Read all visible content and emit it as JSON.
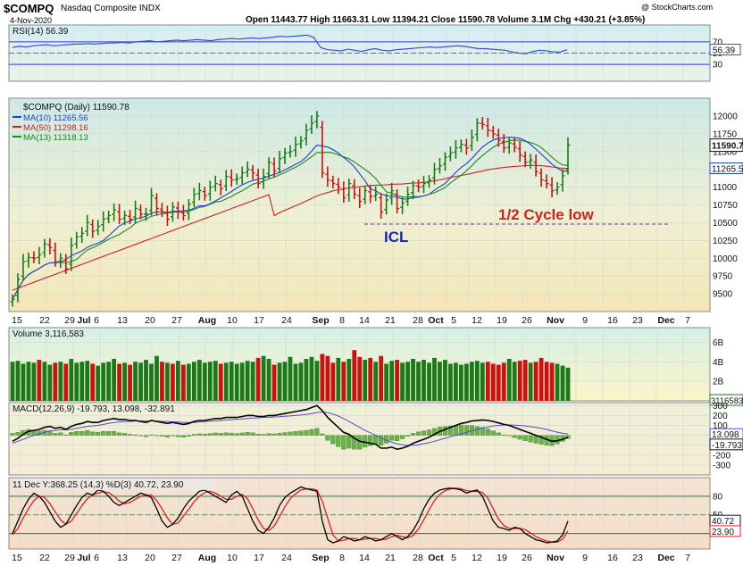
{
  "header": {
    "symbol": "$COMPQ",
    "name": "Nasdaq Composite INDX",
    "date": "4-Nov-2020",
    "quote": "Open 11443.77 High 11663.31 Low 11394.21 Close 11590.78 Volume 3.1M Chg +430.21 (+3.85%)",
    "copyright": "@ StockCharts.com"
  },
  "colors": {
    "up_bar": "#1a7a1a",
    "down_bar": "#cc1111",
    "ma10": "#1f3fd0",
    "ma50": "#d42020",
    "ma13": "#1a8a1a",
    "rsi_line": "#3a52c8",
    "macd_line": "#000000",
    "macd_signal": "#5050c8",
    "histogram": "#6ab04c",
    "stoch_k": "#000000",
    "stoch_d": "#e02020",
    "annotation_blue": "#1a22c8",
    "annotation_red": "#cc2222",
    "cycle_line": "#8a22aa"
  },
  "chart_data": [
    {
      "type": "line",
      "panel": "rsi",
      "label": "RSI(14) 56.39",
      "value_label": "56.39",
      "ylim": [
        0,
        100
      ],
      "y_ticks": [
        70,
        50,
        30
      ],
      "levels": [
        70,
        30
      ],
      "values": [
        60,
        62,
        61,
        63,
        64,
        65,
        63,
        64,
        65,
        66,
        66,
        67,
        66,
        67,
        68,
        68,
        69,
        68,
        70,
        71,
        72,
        70,
        71,
        72,
        73,
        72,
        73,
        74,
        73,
        72,
        74,
        75,
        76,
        75,
        76,
        77,
        76,
        77,
        78,
        80,
        79,
        80,
        81,
        82,
        78,
        60,
        56,
        55,
        54,
        57,
        55,
        53,
        56,
        58,
        55,
        54,
        56,
        57,
        58,
        59,
        60,
        61,
        60,
        61,
        62,
        63,
        62,
        60,
        58,
        58,
        57,
        56,
        55,
        52,
        50,
        49,
        53,
        55,
        54,
        52,
        52,
        56
      ]
    },
    {
      "type": "line",
      "panel": "price",
      "label": "$COMPQ (Daily) 11590.78",
      "ylim": [
        9250,
        12250
      ],
      "y_ticks": [
        9500,
        9750,
        10000,
        10250,
        10500,
        10750,
        11000,
        11250,
        11500,
        11750,
        12000
      ],
      "last_price_label": "11590.78",
      "close": [
        9420,
        9700,
        9950,
        10010,
        10000,
        10050,
        10200,
        10150,
        9950,
        10000,
        9850,
        10180,
        10300,
        10350,
        10500,
        10380,
        10450,
        10550,
        10600,
        10680,
        10550,
        10600,
        10550,
        10700,
        10620,
        10620,
        10880,
        10700,
        10650,
        10550,
        10720,
        10650,
        10600,
        10760,
        10900,
        10950,
        10880,
        11000,
        11050,
        10980,
        11150,
        11100,
        11120,
        11200,
        11250,
        11200,
        11050,
        11150,
        11350,
        11230,
        11400,
        11480,
        11500,
        11600,
        11650,
        11800,
        11900,
        12000,
        11200,
        11100,
        11050,
        11000,
        10850,
        11050,
        10900,
        10800,
        10950,
        10870,
        10900,
        10650,
        10820,
        10950,
        10700,
        10780,
        10900,
        11020,
        11000,
        11050,
        11100,
        11250,
        11300,
        11420,
        11480,
        11550,
        11600,
        11550,
        11700,
        11900,
        11880,
        11800,
        11750,
        11660,
        11550,
        11620,
        11560,
        11450,
        11350,
        11380,
        11220,
        11100,
        11050,
        10950,
        11000,
        11160,
        11590
      ],
      "series": [
        {
          "name": "MA(10) 11265.56"
        },
        {
          "name": "MA(50) 11298.16"
        },
        {
          "name": "MA(13) 11318.13"
        }
      ],
      "ma_right_label": "11265.56",
      "annotations": [
        "ICL",
        "1/2 Cycle low"
      ],
      "cycle_line_level": 10480
    },
    {
      "type": "bar",
      "panel": "volume",
      "label": "Volume 3,116,583",
      "ylim": [
        0,
        7.5
      ],
      "y_ticks": [
        "6B",
        "4B",
        "2B"
      ],
      "last_label": "3116583",
      "values": [
        4.0,
        4.1,
        3.8,
        4.0,
        3.9,
        4.2,
        4.0,
        3.7,
        3.9,
        4.0,
        3.8,
        4.3,
        3.9,
        4.0,
        4.1,
        3.8,
        3.6,
        3.9,
        4.0,
        4.3,
        3.8,
        3.9,
        3.7,
        4.0,
        3.9,
        4.2,
        3.8,
        4.6,
        4.0,
        3.9,
        3.8,
        4.1,
        3.7,
        3.8,
        4.0,
        4.2,
        3.9,
        4.0,
        4.1,
        3.8,
        3.9,
        4.0,
        3.8,
        3.9,
        4.1,
        4.0,
        4.4,
        4.6,
        4.3,
        3.7,
        3.9,
        4.0,
        4.5,
        3.8,
        3.9,
        4.3,
        4.5,
        4.1,
        4.8,
        4.6,
        3.9,
        4.4,
        4.0,
        4.3,
        5.2,
        4.5,
        4.2,
        4.4,
        4.0,
        4.6,
        3.8,
        4.1,
        4.2,
        3.9,
        4.0,
        4.3,
        4.0,
        4.2,
        3.9,
        4.4,
        4.0,
        4.2,
        3.8,
        3.9,
        3.7,
        3.8,
        4.0,
        4.1,
        3.9,
        4.0,
        3.8,
        3.7,
        3.9,
        4.3,
        4.0,
        4.1,
        4.2,
        3.9,
        4.0,
        4.4,
        4.0,
        3.9,
        3.8,
        3.6,
        3.4
      ],
      "down_days": [
        5,
        8,
        10,
        15,
        20,
        22,
        28,
        30,
        32,
        39,
        46,
        49,
        58,
        59,
        60,
        62,
        64,
        65,
        67,
        69,
        72,
        89,
        90,
        91,
        92,
        95,
        96,
        98,
        99,
        100,
        101
      ]
    },
    {
      "type": "line",
      "panel": "macd",
      "label": "MACD(12,26,9) -19.793, 13.098, -32.891",
      "ylim": [
        -400,
        330
      ],
      "y_ticks": [
        300,
        200,
        100,
        0,
        -100,
        -200,
        -300
      ],
      "macd_label": "-19.793",
      "signal_label": "13.098",
      "macd": [
        -60,
        -30,
        10,
        40,
        50,
        60,
        80,
        90,
        70,
        80,
        60,
        90,
        110,
        120,
        140,
        130,
        130,
        150,
        160,
        170,
        160,
        160,
        150,
        150,
        140,
        130,
        150,
        140,
        130,
        120,
        130,
        120,
        110,
        120,
        140,
        150,
        150,
        160,
        170,
        170,
        180,
        180,
        180,
        190,
        200,
        200,
        190,
        190,
        200,
        200,
        210,
        220,
        230,
        240,
        250,
        260,
        280,
        300,
        250,
        180,
        130,
        80,
        30,
        10,
        -30,
        -60,
        -70,
        -80,
        -90,
        -130,
        -130,
        -120,
        -140,
        -130,
        -110,
        -80,
        -60,
        -40,
        -20,
        10,
        40,
        60,
        80,
        100,
        120,
        130,
        145,
        150,
        155,
        150,
        140,
        125,
        110,
        100,
        80,
        60,
        40,
        20,
        0,
        -20,
        -40,
        -60,
        -55,
        -40,
        -20
      ],
      "signal": [
        -80,
        -60,
        -40,
        -20,
        0,
        15,
        30,
        45,
        50,
        55,
        55,
        60,
        70,
        80,
        90,
        95,
        100,
        110,
        120,
        130,
        135,
        140,
        140,
        145,
        145,
        145,
        145,
        145,
        140,
        140,
        135,
        135,
        130,
        130,
        130,
        135,
        138,
        142,
        146,
        150,
        155,
        158,
        162,
        166,
        170,
        175,
        177,
        180,
        182,
        185,
        188,
        192,
        196,
        200,
        205,
        210,
        220,
        230,
        235,
        230,
        215,
        195,
        170,
        140,
        110,
        80,
        50,
        25,
        0,
        -30,
        -50,
        -70,
        -85,
        -95,
        -100,
        -100,
        -95,
        -85,
        -75,
        -60,
        -45,
        -30,
        -15,
        0,
        15,
        30,
        45,
        60,
        75,
        85,
        95,
        100,
        105,
        105,
        103,
        100,
        95,
        88,
        80,
        70,
        60,
        45,
        32,
        22,
        13
      ]
    },
    {
      "type": "line",
      "panel": "stochastic",
      "label": "11 Dec Y:368.25 (14,3) %D(3) 40.72, 23.90",
      "ylim": [
        -5,
        110
      ],
      "y_ticks": [
        80,
        50,
        20
      ],
      "levels": [
        80,
        50,
        20
      ],
      "k_label": "40.72",
      "d_label": "23.90",
      "k": [
        20,
        40,
        60,
        75,
        85,
        80,
        70,
        55,
        40,
        30,
        35,
        50,
        65,
        78,
        85,
        82,
        90,
        88,
        80,
        70,
        65,
        70,
        75,
        80,
        85,
        82,
        78,
        60,
        40,
        30,
        35,
        45,
        60,
        72,
        80,
        88,
        90,
        85,
        80,
        75,
        70,
        82,
        88,
        80,
        60,
        40,
        25,
        20,
        30,
        45,
        65,
        78,
        85,
        90,
        95,
        92,
        90,
        88,
        40,
        10,
        5,
        8,
        15,
        12,
        8,
        10,
        15,
        12,
        8,
        10,
        15,
        20,
        15,
        10,
        15,
        25,
        40,
        60,
        75,
        85,
        90,
        92,
        93,
        92,
        90,
        85,
        88,
        90,
        80,
        60,
        40,
        30,
        28,
        25,
        30,
        28,
        20,
        15,
        10,
        8,
        5,
        6,
        8,
        18,
        40
      ],
      "d": [
        18,
        28,
        45,
        60,
        73,
        80,
        78,
        68,
        55,
        42,
        35,
        40,
        52,
        65,
        76,
        82,
        85,
        87,
        86,
        80,
        72,
        68,
        70,
        75,
        80,
        82,
        82,
        73,
        60,
        45,
        35,
        37,
        48,
        59,
        71,
        80,
        86,
        88,
        85,
        80,
        75,
        75,
        80,
        83,
        76,
        60,
        42,
        28,
        25,
        32,
        47,
        63,
        76,
        84,
        90,
        92,
        92,
        90,
        72,
        45,
        18,
        8,
        9,
        12,
        12,
        10,
        11,
        12,
        12,
        10,
        11,
        15,
        17,
        15,
        13,
        17,
        27,
        42,
        58,
        73,
        83,
        89,
        92,
        93,
        92,
        89,
        88,
        88,
        86,
        77,
        60,
        43,
        33,
        28,
        28,
        28,
        26,
        21,
        15,
        11,
        8,
        6,
        6,
        11,
        24
      ]
    }
  ],
  "x_axis": {
    "labels": [
      "15",
      "22",
      "29",
      "Jul",
      "6",
      "13",
      "20",
      "27",
      "Aug",
      "10",
      "17",
      "24",
      "Sep",
      "8",
      "14",
      "21",
      "28",
      "Oct",
      "5",
      "12",
      "19",
      "26",
      "Nov",
      "9",
      "16",
      "23",
      "Dec",
      "7"
    ],
    "month_labels": [
      "Jul",
      "Aug",
      "Sep",
      "Oct",
      "Nov",
      "Dec"
    ]
  }
}
